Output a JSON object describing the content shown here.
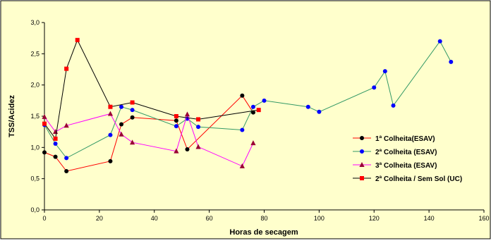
{
  "chart_data": {
    "type": "line",
    "title": "",
    "xlabel": "Horas de secagem",
    "ylabel": "TSS/Acidez",
    "xlim": [
      0,
      160
    ],
    "ylim": [
      0,
      3.0
    ],
    "x_ticks": [
      "0",
      "20",
      "40",
      "60",
      "80",
      "100",
      "120",
      "140",
      "160"
    ],
    "y_ticks": [
      "0,0",
      "0,5",
      "1,0",
      "1,5",
      "2,0",
      "2,5",
      "3,0"
    ],
    "grid": false,
    "legend_position": "right",
    "background_color": "#FFFFCC",
    "series": [
      {
        "name": "1ª Colheita(ESAV)",
        "line_color": "#FF0000",
        "marker_color": "#000000",
        "marker": "circle",
        "x": [
          0,
          4,
          8,
          24,
          28,
          32,
          48,
          52,
          72,
          76
        ],
        "y": [
          0.92,
          0.85,
          0.62,
          0.78,
          1.37,
          1.48,
          1.43,
          0.97,
          1.83,
          1.56
        ]
      },
      {
        "name": "2ª Colheita (ESAV)",
        "line_color": "#339966",
        "marker_color": "#0000FF",
        "marker": "circle",
        "x": [
          0,
          4,
          8,
          24,
          28,
          32,
          48,
          52,
          56,
          72,
          76,
          80,
          96,
          100,
          120,
          124,
          127,
          144,
          148
        ],
        "y": [
          1.36,
          1.06,
          0.83,
          1.2,
          1.65,
          1.6,
          1.34,
          1.46,
          1.33,
          1.28,
          1.65,
          1.75,
          1.65,
          1.57,
          1.96,
          2.22,
          1.67,
          2.7,
          2.37
        ]
      },
      {
        "name": "3ª Colheita (ESAV)",
        "line_color": "#FF00FF",
        "marker_color": "#990033",
        "marker": "triangle",
        "x": [
          0,
          4,
          8,
          24,
          28,
          32,
          48,
          52,
          56,
          72,
          76
        ],
        "y": [
          1.49,
          1.25,
          1.35,
          1.54,
          1.21,
          1.08,
          0.94,
          1.53,
          1.01,
          0.7,
          1.07
        ]
      },
      {
        "name": "2ª Colheita / Sem Sol (UC)",
        "line_color": "#000000",
        "marker_color": "#FF0000",
        "marker": "square",
        "x": [
          0,
          4,
          8,
          12,
          24,
          32,
          48,
          56,
          78
        ],
        "y": [
          1.38,
          1.14,
          2.26,
          2.72,
          1.65,
          1.72,
          1.5,
          1.45,
          1.6
        ]
      }
    ]
  }
}
